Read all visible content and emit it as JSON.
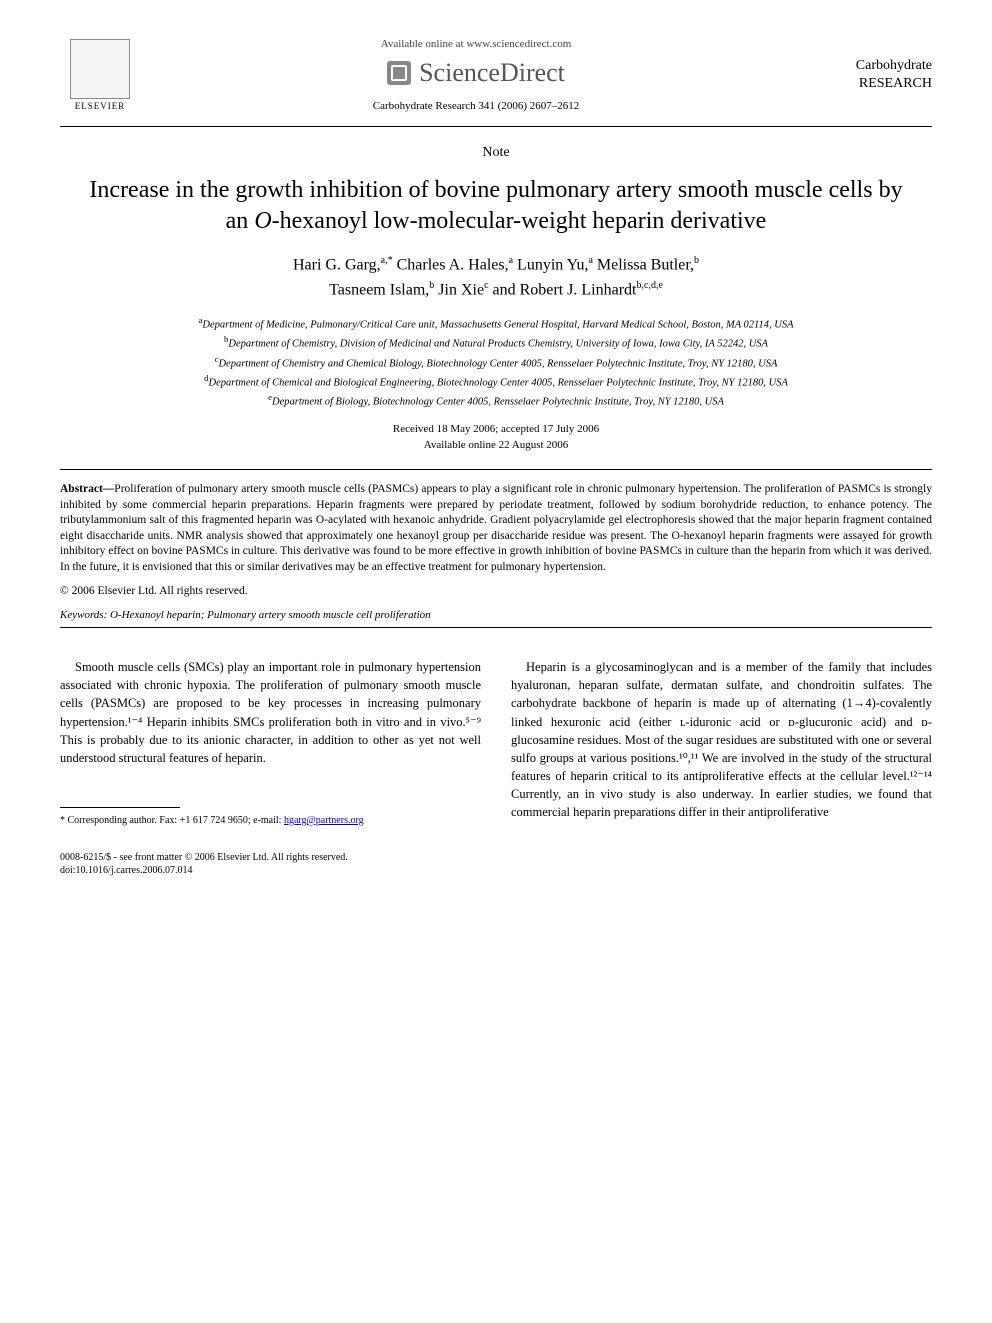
{
  "header": {
    "available_online": "Available online at www.sciencedirect.com",
    "sciencedirect": "ScienceDirect",
    "journal_ref": "Carbohydrate Research 341 (2006) 2607–2612",
    "elsevier": "ELSEVIER",
    "journal_box_line1": "Carbohydrate",
    "journal_box_line2": "RESEARCH"
  },
  "note_label": "Note",
  "title": "Increase in the growth inhibition of bovine pulmonary artery smooth muscle cells by an O-hexanoyl low-molecular-weight heparin derivative",
  "authors_html": "Hari G. Garg,<sup>a,*</sup> Charles A. Hales,<sup>a</sup> Lunyin Yu,<sup>a</sup> Melissa Butler,<sup>b</sup> Tasneem Islam,<sup>b</sup> Jin Xie<sup>c</sup> and Robert J. Linhardt<sup>b,c,d,e</sup>",
  "affiliations": {
    "a": "Department of Medicine, Pulmonary/Critical Care unit, Massachusetts General Hospital, Harvard Medical School, Boston, MA 02114, USA",
    "b": "Department of Chemistry, Division of Medicinal and Natural Products Chemistry, University of Iowa, Iowa City, IA 52242, USA",
    "c": "Department of Chemistry and Chemical Biology, Biotechnology Center 4005, Rensselaer Polytechnic Institute, Troy, NY 12180, USA",
    "d": "Department of Chemical and Biological Engineering, Biotechnology Center 4005, Rensselaer Polytechnic Institute, Troy, NY 12180, USA",
    "e": "Department of Biology, Biotechnology Center 4005, Rensselaer Polytechnic Institute, Troy, NY 12180, USA"
  },
  "dates": {
    "received": "Received 18 May 2006; accepted 17 July 2006",
    "available": "Available online 22 August 2006"
  },
  "abstract_label": "Abstract—",
  "abstract": "Proliferation of pulmonary artery smooth muscle cells (PASMCs) appears to play a significant role in chronic pulmonary hypertension. The proliferation of PASMCs is strongly inhibited by some commercial heparin preparations. Heparin fragments were prepared by periodate treatment, followed by sodium borohydride reduction, to enhance potency. The tributylammonium salt of this fragmented heparin was O-acylated with hexanoic anhydride. Gradient polyacrylamide gel electrophoresis showed that the major heparin fragment contained eight disaccharide units. NMR analysis showed that approximately one hexanoyl group per disaccharide residue was present. The O-hexanoyl heparin fragments were assayed for growth inhibitory effect on bovine PASMCs in culture. This derivative was found to be more effective in growth inhibition of bovine PASMCs in culture than the heparin from which it was derived. In the future, it is envisioned that this or similar derivatives may be an effective treatment for pulmonary hypertension.",
  "copyright": "© 2006 Elsevier Ltd. All rights reserved.",
  "keywords_label": "Keywords:",
  "keywords": " O-Hexanoyl heparin; Pulmonary artery smooth muscle cell proliferation",
  "body": {
    "col1": "Smooth muscle cells (SMCs) play an important role in pulmonary hypertension associated with chronic hypoxia. The proliferation of pulmonary smooth muscle cells (PASMCs) are proposed to be key processes in increasing pulmonary hypertension.¹⁻⁴ Heparin inhibits SMCs proliferation both in vitro and in vivo.⁵⁻⁹ This is probably due to its anionic character, in addition to other as yet not well understood structural features of heparin.",
    "col2": "Heparin is a glycosaminoglycan and is a member of the family that includes hyaluronan, heparan sulfate, dermatan sulfate, and chondroitin sulfates. The carbohydrate backbone of heparin is made up of alternating (1→4)-covalently linked hexuronic acid (either ʟ-iduronic acid or ᴅ-glucuronic acid) and ᴅ-glucosamine residues. Most of the sugar residues are substituted with one or several sulfo groups at various positions.¹⁰,¹¹ We are involved in the study of the structural features of heparin critical to its antiproliferative effects at the cellular level.¹²⁻¹⁴ Currently, an in vivo study is also underway. In earlier studies, we found that commercial heparin preparations differ in their antiproliferative"
  },
  "footnote": {
    "corresponding": "* Corresponding author. Fax: +1 617 724 9650; e-mail: ",
    "email": "hgarg@partners.org"
  },
  "footer": {
    "front_matter": "0008-6215/$ - see front matter © 2006 Elsevier Ltd. All rights reserved.",
    "doi": "doi:10.1016/j.carres.2006.07.014"
  },
  "colors": {
    "text": "#000000",
    "bg": "#ffffff",
    "link": "#0000cc",
    "sd_gray": "#555555"
  },
  "typography": {
    "title_size_pt": 24,
    "author_size_pt": 16,
    "body_size_pt": 12.5,
    "abstract_size_pt": 11.5,
    "affil_size_pt": 10.5,
    "footnote_size_pt": 10
  }
}
